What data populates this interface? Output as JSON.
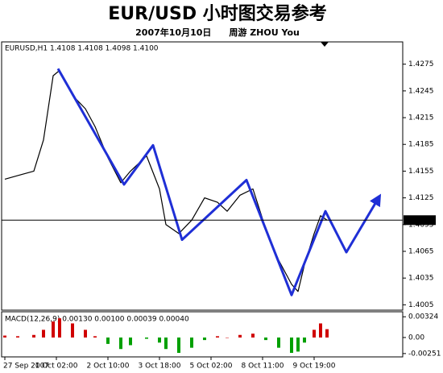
{
  "chart_data": [
    {
      "type": "line",
      "title": "EUR/USD 小时图交易参考",
      "subtitle": "2007年10月10日　　周游 ZHOU You",
      "label": "EURUSD,H1 1.4108 1.4108 1.4098 1.4100",
      "xlim": [
        -2,
        247
      ],
      "ylim": [
        1.3999,
        1.43
      ],
      "yticks": [
        1.4275,
        1.4245,
        1.4215,
        1.4185,
        1.4155,
        1.4125,
        1.4095,
        1.4065,
        1.4035,
        1.4005
      ],
      "current_price": {
        "value": 1.41,
        "label": "1.4100"
      },
      "current_color": "#000000",
      "series": [
        {
          "color": "#000000",
          "x": [
            0,
            8,
            18,
            24,
            30,
            34,
            42,
            50,
            56,
            64,
            72,
            78,
            88,
            96,
            100,
            108,
            116,
            124,
            132,
            138,
            146,
            154,
            162,
            170,
            178,
            182,
            186,
            192,
            196,
            200
          ],
          "values": [
            1.4146,
            1.415,
            1.4155,
            1.419,
            1.4262,
            1.4268,
            1.424,
            1.4225,
            1.4205,
            1.417,
            1.4142,
            1.4155,
            1.4172,
            1.4135,
            1.4095,
            1.4085,
            1.41,
            1.4125,
            1.412,
            1.411,
            1.4128,
            1.4135,
            1.409,
            1.4055,
            1.4028,
            1.402,
            1.405,
            1.4085,
            1.4105,
            1.41
          ]
        },
        {
          "color": "#1f2fd6",
          "x": [
            33,
            74,
            92,
            110,
            150,
            178,
            199,
            212,
            232
          ],
          "values": [
            1.427,
            1.414,
            1.4184,
            1.4078,
            1.4145,
            1.4016,
            1.411,
            1.4064,
            1.4125
          ]
        }
      ]
    },
    {
      "type": "bar",
      "label": "MACD(12,26,9) 0.00130 0.00100 0.00039 0.00040",
      "xlim": [
        -2,
        247
      ],
      "ylim": [
        -0.00303,
        0.00402
      ],
      "yticks": [
        0.00324,
        {
          "value": 0,
          "label": "0.00"
        },
        -0.00251
      ],
      "xticks": [
        {
          "value": 0,
          "label": "27 Sep 2007"
        },
        {
          "value": 32,
          "label": "1 Oct 02:00"
        },
        {
          "value": 64,
          "label": "2 Oct 10:00"
        },
        {
          "value": 96,
          "label": "3 Oct 18:00"
        },
        {
          "value": 128,
          "label": "5 Oct 02:00"
        },
        {
          "value": 160,
          "label": "8 Oct 11:00"
        },
        {
          "value": 192,
          "label": "9 Oct 19:00"
        }
      ],
      "up_color": "#d00000",
      "down_color": "#00a000",
      "x": [
        0,
        8,
        18,
        24,
        30,
        34,
        42,
        50,
        56,
        64,
        72,
        78,
        88,
        96,
        100,
        108,
        116,
        124,
        132,
        138,
        146,
        154,
        162,
        170,
        178,
        182,
        186,
        192,
        196,
        200
      ],
      "values": [
        0.0003,
        0.0002,
        0.0004,
        0.0012,
        0.0025,
        0.003,
        0.0022,
        0.0012,
        0.0002,
        -0.001,
        -0.0018,
        -0.0012,
        -0.0002,
        -0.0008,
        -0.0018,
        -0.0024,
        -0.0016,
        -0.0004,
        0.0002,
        0,
        0.0004,
        0.0006,
        -0.0004,
        -0.0016,
        -0.0024,
        -0.0022,
        -0.0008,
        0.0012,
        0.0022,
        0.0013
      ]
    }
  ]
}
